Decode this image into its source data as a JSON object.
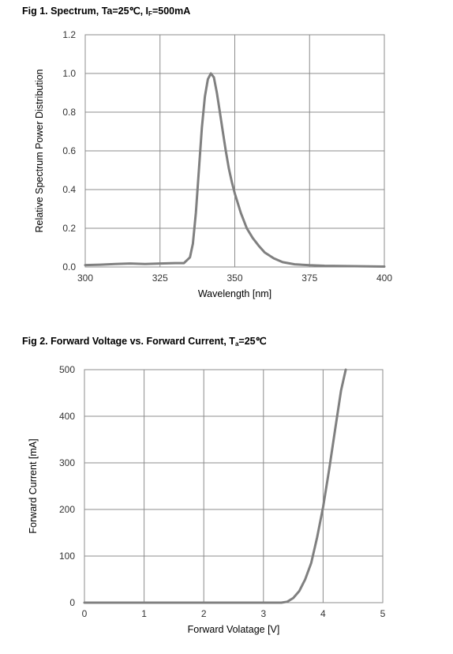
{
  "chart_data": [
    {
      "type": "line",
      "title_main": "Fig 1. Spectrum, Ta=25℃, I",
      "title_sub": "F",
      "title_tail": "=500mA",
      "xlabel": "Wavelength [nm]",
      "ylabel": "Relative Spectrum Power Distribution",
      "xlim": [
        300,
        400
      ],
      "ylim": [
        0,
        1.2
      ],
      "xticks": [
        "300",
        "325",
        "350",
        "375",
        "400"
      ],
      "yticks": [
        "0.0",
        "0.2",
        "0.4",
        "0.6",
        "0.8",
        "1.0",
        "1.2"
      ],
      "grid": true,
      "line_color": "#808080",
      "series": [
        {
          "x": [
            300,
            305,
            310,
            315,
            320,
            325,
            330,
            333,
            335,
            336,
            337,
            338,
            339,
            340,
            341,
            342,
            343,
            344,
            345,
            346,
            347,
            348,
            349,
            350,
            352,
            354,
            356,
            358,
            360,
            363,
            366,
            370,
            375,
            380,
            390,
            400
          ],
          "y": [
            0.01,
            0.012,
            0.015,
            0.018,
            0.015,
            0.018,
            0.02,
            0.02,
            0.05,
            0.12,
            0.28,
            0.5,
            0.72,
            0.88,
            0.97,
            1.0,
            0.98,
            0.9,
            0.8,
            0.7,
            0.6,
            0.51,
            0.44,
            0.38,
            0.28,
            0.2,
            0.15,
            0.11,
            0.075,
            0.045,
            0.025,
            0.014,
            0.009,
            0.006,
            0.004,
            0.002
          ]
        }
      ]
    },
    {
      "type": "line",
      "title_main": "Fig 2. Forward Voltage vs. Forward Current, T",
      "title_sub": "a",
      "title_tail": "=25℃",
      "xlabel": "Forward  Volatage [V]",
      "ylabel": "Forward Current [mA]",
      "xlim": [
        0,
        5
      ],
      "ylim": [
        0,
        500
      ],
      "xticks": [
        "0",
        "1",
        "2",
        "3",
        "4",
        "5"
      ],
      "yticks": [
        "0",
        "100",
        "200",
        "300",
        "400",
        "500"
      ],
      "grid": true,
      "line_color": "#808080",
      "series": [
        {
          "x": [
            0,
            1,
            2,
            3,
            3.3,
            3.4,
            3.5,
            3.6,
            3.7,
            3.8,
            3.9,
            4.0,
            4.1,
            4.2,
            4.3,
            4.38
          ],
          "y": [
            0,
            0,
            0,
            0,
            0,
            2,
            10,
            25,
            50,
            85,
            140,
            205,
            285,
            370,
            455,
            500
          ]
        }
      ]
    }
  ]
}
